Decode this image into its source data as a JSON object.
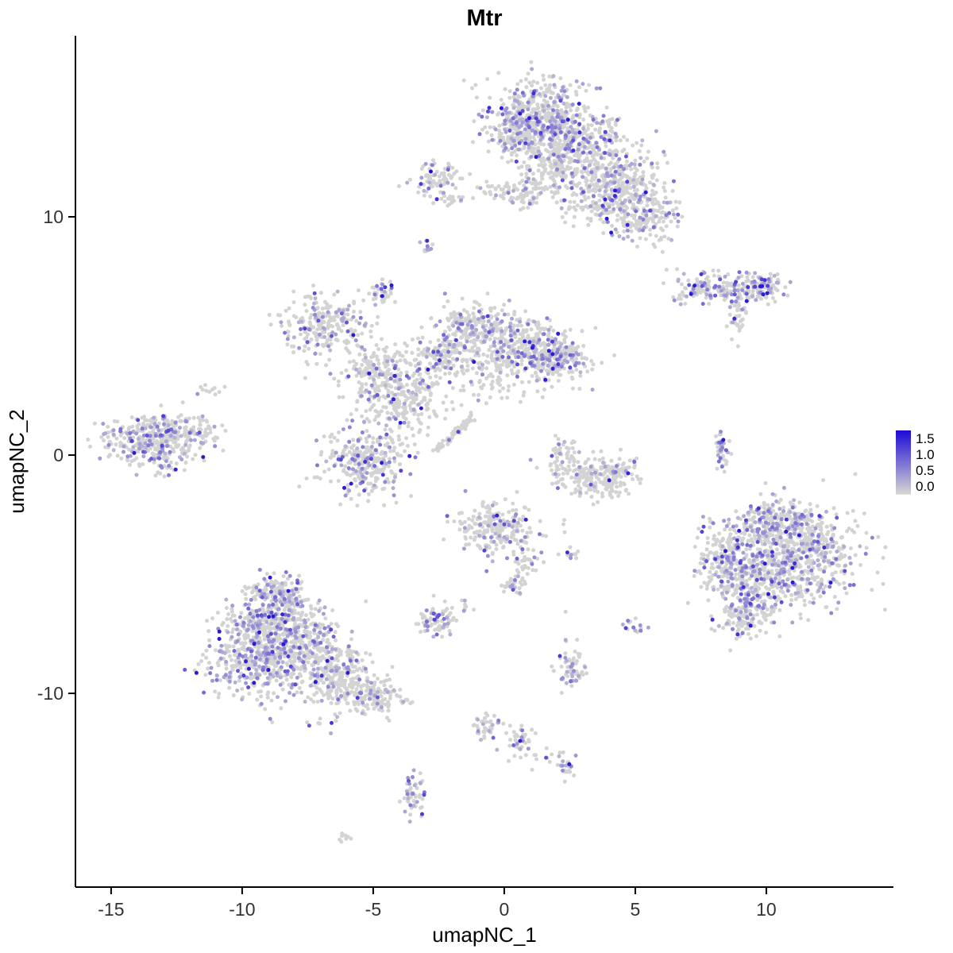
{
  "title": "Mtr",
  "axes": {
    "x_label": "umapNC_1",
    "y_label": "umapNC_2",
    "x_ticks": [
      -15,
      -10,
      -5,
      0,
      5,
      10
    ],
    "y_ticks": [
      -10,
      0,
      10
    ],
    "x_range": [
      -16.36,
      14.85
    ],
    "y_range": [
      -18.13,
      17.6
    ]
  },
  "legend": {
    "labels": [
      "1.5",
      "1.0",
      "0.5",
      "0.0"
    ],
    "values": [
      1.5,
      1.0,
      0.5,
      0.0
    ],
    "vmax": 1.75
  },
  "colors": {
    "background": "#ffffff",
    "axis": "#000000",
    "point_low": "#d3d3d3",
    "point_high": "#1e0cd6"
  },
  "chart_data": {
    "type": "scatter",
    "title": "Mtr",
    "xlabel": "umapNC_1",
    "ylabel": "umapNC_2",
    "xlim": [
      -16.36,
      14.85
    ],
    "ylim": [
      -18.13,
      17.6
    ],
    "grid": false,
    "legend_position": "right",
    "colorbar": {
      "tick_values": [
        1.5,
        1.0,
        0.5,
        0.0
      ],
      "range": [
        0,
        1.75
      ],
      "low_color": "#d3d3d3",
      "high_color": "#1e0cd6"
    },
    "cluster_fields": [
      "center_x",
      "center_y",
      "spread_x",
      "spread_y",
      "n_points",
      "expressing_fraction"
    ],
    "clusters": [
      [
        1.3,
        14.2,
        1.0,
        0.8,
        500,
        0.3
      ],
      [
        2.8,
        13.0,
        0.95,
        0.75,
        380,
        0.22
      ],
      [
        4.2,
        11.4,
        0.85,
        0.65,
        300,
        0.22
      ],
      [
        5.3,
        10.1,
        0.65,
        0.5,
        200,
        0.25
      ],
      [
        0.4,
        13.5,
        0.5,
        0.6,
        100,
        0.3
      ],
      [
        1.6,
        11.7,
        0.55,
        0.45,
        80,
        0.15
      ],
      [
        0.8,
        10.9,
        0.35,
        0.3,
        50,
        0.12
      ],
      [
        3.1,
        10.4,
        0.5,
        0.35,
        50,
        0.15
      ],
      [
        -2.6,
        11.6,
        0.5,
        0.4,
        80,
        0.2
      ],
      [
        -2.05,
        10.65,
        0.25,
        0.2,
        15,
        0.1
      ],
      [
        -0.2,
        11.1,
        0.5,
        0.22,
        35,
        0.1
      ],
      [
        8.2,
        7.0,
        0.9,
        0.32,
        180,
        0.35
      ],
      [
        9.9,
        7.1,
        0.4,
        0.28,
        70,
        0.5
      ],
      [
        8.9,
        6.0,
        0.22,
        0.5,
        45,
        0.12
      ],
      [
        -2.9,
        8.7,
        0.13,
        0.18,
        12,
        0.3
      ],
      [
        -4.7,
        6.9,
        0.3,
        0.28,
        40,
        0.3
      ],
      [
        -6.9,
        5.4,
        0.75,
        0.65,
        240,
        0.25
      ],
      [
        -4.8,
        3.4,
        0.65,
        0.65,
        220,
        0.15
      ],
      [
        -3.6,
        2.2,
        0.6,
        0.65,
        180,
        0.12
      ],
      [
        -2.3,
        4.0,
        0.65,
        0.55,
        160,
        0.15
      ],
      [
        -1.2,
        5.3,
        0.65,
        0.55,
        240,
        0.25
      ],
      [
        0.6,
        4.6,
        0.75,
        0.55,
        260,
        0.2
      ],
      [
        2.0,
        4.1,
        0.65,
        0.55,
        240,
        0.25
      ],
      [
        -0.4,
        3.2,
        0.6,
        0.5,
        70,
        0.1
      ],
      [
        -13.4,
        0.6,
        0.95,
        0.55,
        360,
        0.3
      ],
      [
        -11.8,
        1.0,
        0.5,
        0.3,
        70,
        0.2
      ],
      [
        -11.3,
        2.7,
        0.3,
        0.18,
        12,
        0.1
      ],
      [
        -5.3,
        -0.2,
        0.75,
        0.75,
        320,
        0.25
      ],
      [
        3.2,
        -0.9,
        0.75,
        0.45,
        180,
        0.08
      ],
      [
        2.3,
        0.0,
        0.28,
        0.38,
        50,
        0.1
      ],
      [
        4.4,
        -0.8,
        0.4,
        0.38,
        60,
        0.08
      ],
      [
        8.3,
        0.2,
        0.13,
        0.5,
        45,
        0.3
      ],
      [
        11.2,
        -4.2,
        1.15,
        1.05,
        650,
        0.3
      ],
      [
        9.4,
        -5.3,
        0.75,
        0.85,
        300,
        0.25
      ],
      [
        8.4,
        -4.3,
        0.45,
        0.75,
        150,
        0.22
      ],
      [
        10.4,
        -2.7,
        0.75,
        0.45,
        190,
        0.3
      ],
      [
        9.1,
        -6.8,
        0.5,
        0.4,
        100,
        0.2
      ],
      [
        -0.3,
        -3.1,
        0.75,
        0.55,
        240,
        0.22
      ],
      [
        0.8,
        -4.4,
        0.3,
        0.3,
        35,
        0.15
      ],
      [
        2.6,
        -4.2,
        0.18,
        0.15,
        12,
        0.1
      ],
      [
        0.4,
        -5.4,
        0.28,
        0.28,
        35,
        0.15
      ],
      [
        -2.6,
        -6.9,
        0.42,
        0.38,
        80,
        0.35
      ],
      [
        -1.5,
        -6.3,
        0.12,
        0.12,
        6,
        0.5
      ],
      [
        -8.9,
        -7.0,
        0.85,
        0.75,
        380,
        0.3
      ],
      [
        -9.5,
        -8.7,
        0.85,
        0.75,
        360,
        0.3
      ],
      [
        -7.6,
        -8.3,
        0.8,
        0.75,
        320,
        0.25
      ],
      [
        -6.3,
        -9.4,
        0.65,
        0.55,
        210,
        0.2
      ],
      [
        -4.9,
        -10.1,
        0.55,
        0.38,
        140,
        0.15
      ],
      [
        -8.6,
        -5.7,
        0.5,
        0.38,
        120,
        0.25
      ],
      [
        -7.0,
        -11.4,
        0.55,
        0.28,
        8,
        0.2
      ],
      [
        5.0,
        -7.2,
        0.18,
        0.33,
        16,
        0.3
      ],
      [
        2.5,
        -8.9,
        0.28,
        0.5,
        60,
        0.3
      ],
      [
        -0.6,
        -11.4,
        0.28,
        0.33,
        40,
        0.3
      ],
      [
        0.6,
        -12.1,
        0.24,
        0.38,
        35,
        0.2
      ],
      [
        1.5,
        -12.6,
        0.38,
        0.14,
        12,
        0.1
      ],
      [
        2.4,
        -13.1,
        0.18,
        0.24,
        22,
        0.25
      ],
      [
        -3.5,
        -14.2,
        0.22,
        0.5,
        55,
        0.3
      ],
      [
        -6.1,
        -16.0,
        0.14,
        0.1,
        8,
        0.1
      ]
    ],
    "segment_fields": [
      "x1",
      "y1",
      "x2",
      "y2",
      "jitter",
      "n_points",
      "expressing_fraction"
    ],
    "segments": [
      [
        -2.6,
        0.2,
        -1.2,
        1.6,
        0.07,
        80,
        0.05
      ]
    ],
    "special_point_fields": [
      "x",
      "y",
      "expression_value"
    ],
    "special_points": [
      [
        -2.8,
        11.9,
        1.75
      ],
      [
        9.3,
        7.05,
        1.4
      ],
      [
        10.05,
        7.1,
        1.3
      ]
    ]
  }
}
